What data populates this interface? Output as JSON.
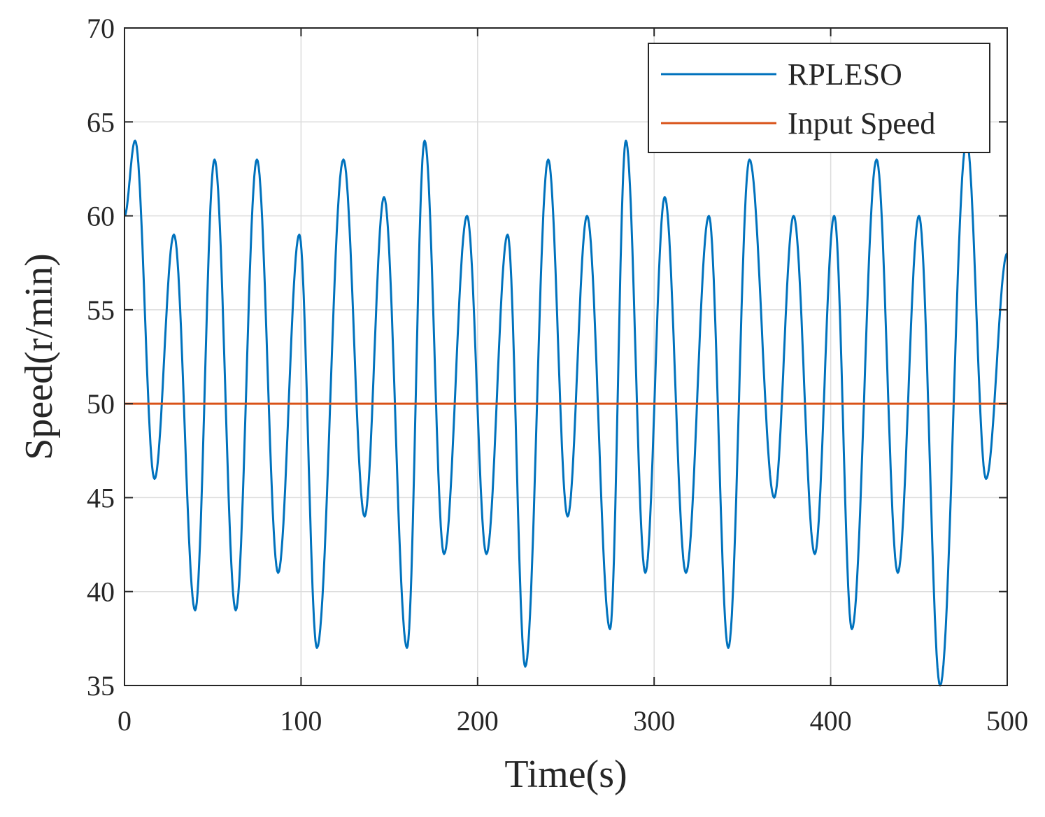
{
  "chart_data": {
    "type": "line",
    "title": "",
    "xlabel": "Time(s)",
    "ylabel": "Speed(r/min)",
    "xlim": [
      0,
      500
    ],
    "ylim": [
      35,
      70
    ],
    "xticks": [
      0,
      100,
      200,
      300,
      400,
      500
    ],
    "yticks": [
      35,
      40,
      45,
      50,
      55,
      60,
      65,
      70
    ],
    "grid": true,
    "legend_position": "top-right",
    "series": [
      {
        "name": "RPLESO",
        "color": "#0072BD",
        "x": [
          0,
          6,
          17,
          28,
          40,
          51,
          63,
          75,
          87,
          99,
          109,
          124,
          136,
          147,
          160,
          170,
          181,
          194,
          205,
          217,
          227,
          240,
          251,
          262,
          275,
          284,
          295,
          306,
          318,
          331,
          342,
          354,
          368,
          379,
          391,
          402,
          412,
          426,
          438,
          450,
          462,
          477,
          488,
          500
        ],
        "y": [
          60,
          64,
          46,
          59,
          39,
          63,
          39,
          63,
          41,
          59,
          37,
          63,
          44,
          61,
          37,
          64,
          42,
          60,
          42,
          59,
          36,
          63,
          44,
          60,
          38,
          64,
          41,
          61,
          41,
          60,
          37,
          63,
          45,
          60,
          42,
          60,
          38,
          63,
          41,
          60,
          35,
          64,
          46,
          58
        ]
      },
      {
        "name": "Input Speed",
        "color": "#D95319",
        "x": [
          0,
          500
        ],
        "y": [
          50,
          50
        ]
      }
    ]
  }
}
